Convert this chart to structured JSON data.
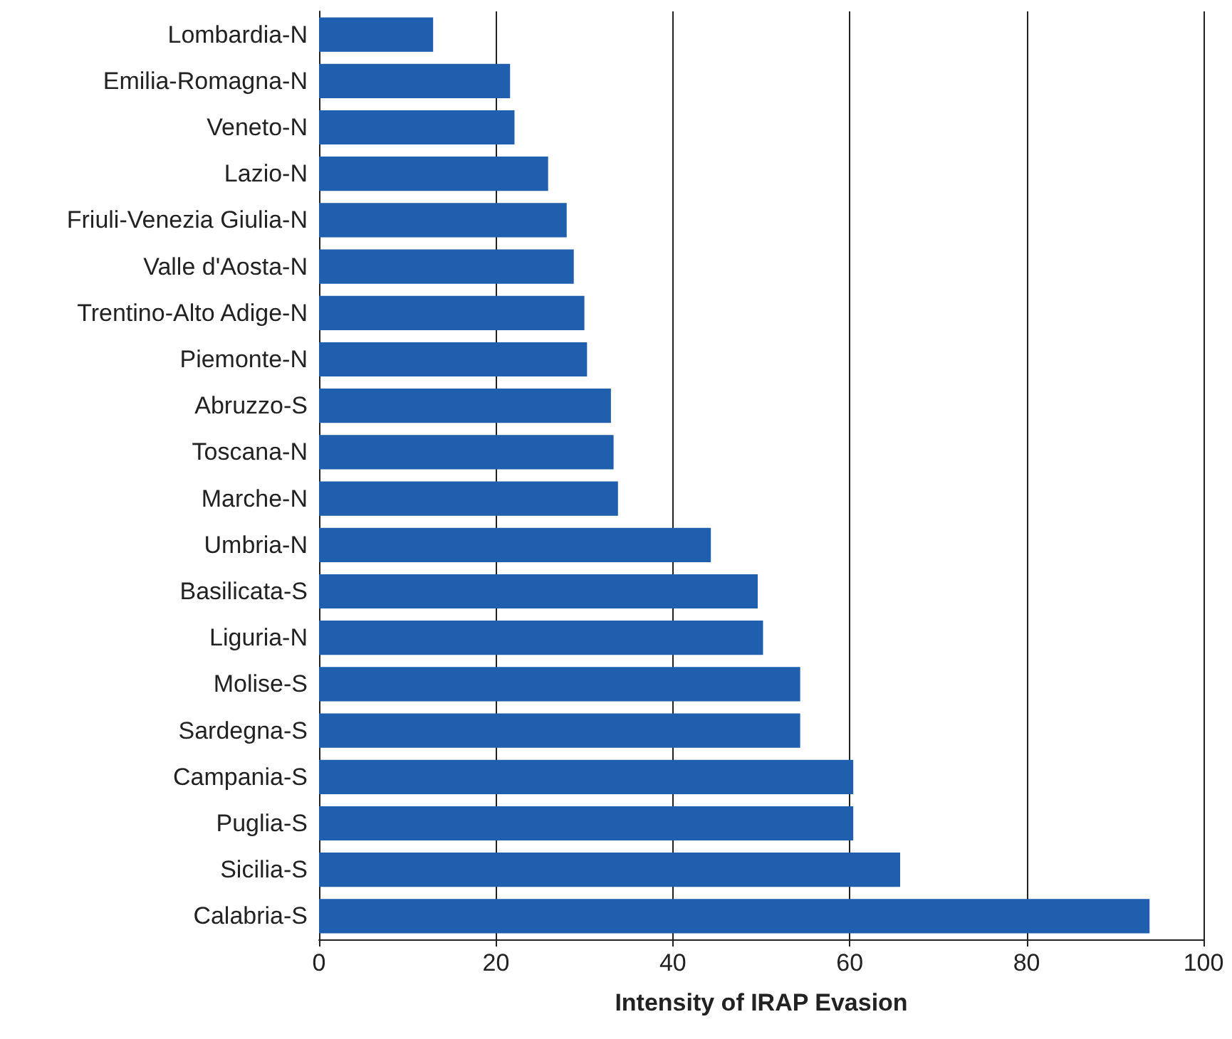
{
  "chart_data": {
    "type": "bar",
    "orientation": "horizontal",
    "xlabel": "Intensity of IRAP Evasion",
    "categories": [
      "Lombardia-N",
      "Emilia-Romagna-N",
      "Veneto-N",
      "Lazio-N",
      "Friuli-Venezia Giulia-N",
      "Valle d'Aosta-N",
      "Trentino-Alto Adige-N",
      "Piemonte-N",
      "Abruzzo-S",
      "Toscana-N",
      "Marche-N",
      "Umbria-N",
      "Basilicata-S",
      "Liguria-N",
      "Molise-S",
      "Sardegna-S",
      "Campania-S",
      "Puglia-S",
      "Sicilia-S",
      "Calabria-S"
    ],
    "values": [
      12.9,
      21.6,
      22.1,
      25.9,
      28.0,
      28.8,
      30.0,
      30.3,
      33.0,
      33.3,
      33.8,
      44.3,
      49.6,
      50.2,
      54.4,
      54.4,
      60.4,
      60.4,
      65.7,
      93.9
    ],
    "color": "#1f5fae",
    "xlim": [
      0,
      100
    ],
    "xticks": [
      0,
      20,
      40,
      60,
      80,
      100
    ],
    "grid": "x"
  }
}
